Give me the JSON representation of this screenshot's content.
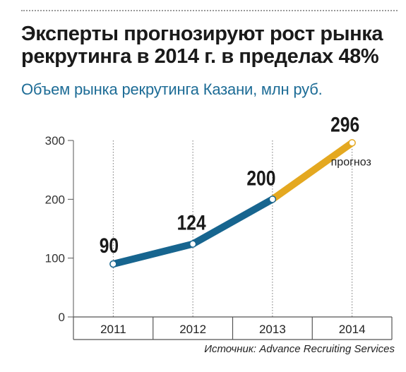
{
  "header": {
    "title": "Эксперты прогнозируют рост рынка рекрутинга в 2014 г. в пределах 48%",
    "subtitle": "Объем рынка рекрутинга Казани, млн руб."
  },
  "source": "Источник: Advance Recruiting Services",
  "colors": {
    "actual": "#17658f",
    "forecast": "#e4a820",
    "axis": "#555555",
    "grid": "#777777"
  },
  "chart_data": {
    "type": "line",
    "title": "Объем рынка рекрутинга Казани, млн руб.",
    "categories": [
      "2011",
      "2012",
      "2013",
      "2014"
    ],
    "series": [
      {
        "values": [
          90,
          124,
          200,
          296
        ]
      }
    ],
    "data_labels": [
      "90",
      "124",
      "200",
      "296"
    ],
    "forecast_from_index": 2,
    "forecast_label": "прогноз",
    "ylim": [
      0,
      300
    ],
    "yticks": [
      0,
      100,
      200,
      300
    ],
    "grid": "vertical"
  }
}
